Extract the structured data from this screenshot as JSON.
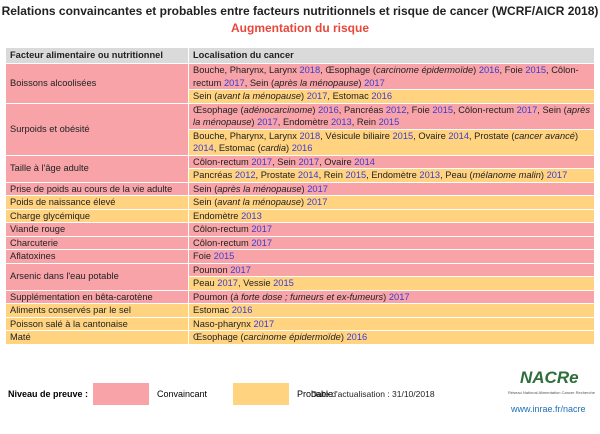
{
  "header": {
    "title": "Relations convaincantes et probables  entre facteurs nutritionnels  et risque de cancer (WCRF/AICR 2018)",
    "subtitle": "Augmentation  du risque"
  },
  "table": {
    "columns": [
      "Facteur alimentaire ou nutritionnel",
      "Localisation du cancer"
    ],
    "rows": [
      {
        "factor": "Boissons alcoolisées",
        "entries": [
          {
            "level": 0,
            "parts": [
              {
                "text": "Bouche, Pharynx, Larynx "
              },
              {
                "year": "2018"
              },
              {
                "text": ", Œsophage ("
              },
              {
                "italic": "carcinome épidermoïde"
              },
              {
                "text": ") "
              },
              {
                "year": "2016"
              },
              {
                "text": ", Foie "
              },
              {
                "year": "2015"
              },
              {
                "text": ", Côlon-rectum  "
              },
              {
                "year": "2017"
              },
              {
                "text": ", Sein ("
              },
              {
                "italic": "après la ménopause"
              },
              {
                "text": ") "
              },
              {
                "year": "2017"
              }
            ]
          },
          {
            "level": 1,
            "parts": [
              {
                "text": "Sein ("
              },
              {
                "italic": "avant la ménopause"
              },
              {
                "text": ") "
              },
              {
                "year": "2017"
              },
              {
                "text": ", Estomac "
              },
              {
                "year": "2016"
              }
            ]
          }
        ]
      },
      {
        "factor": "Surpoids et obésité",
        "entries": [
          {
            "level": 0,
            "parts": [
              {
                "text": "Œsophage ("
              },
              {
                "italic": "adénocarcinome"
              },
              {
                "text": ") "
              },
              {
                "year": "2016"
              },
              {
                "text": ", Pancréas "
              },
              {
                "year": "2012"
              },
              {
                "text": ", Foie "
              },
              {
                "year": "2015"
              },
              {
                "text": ", Côlon-rectum "
              },
              {
                "year": "2017"
              },
              {
                "text": ", Sein ("
              },
              {
                "italic": "après la ménopause"
              },
              {
                "text": ") "
              },
              {
                "year": "2017"
              },
              {
                "text": ", Endomètre  "
              },
              {
                "year": "2013"
              },
              {
                "text": ", Rein "
              },
              {
                "year": "2015"
              }
            ]
          },
          {
            "level": 1,
            "parts": [
              {
                "text": "Bouche, Pharynx, Larynx "
              },
              {
                "year": "2018"
              },
              {
                "text": ", Vésicule biliaire "
              },
              {
                "year": "2015"
              },
              {
                "text": ", Ovaire "
              },
              {
                "year": "2014"
              },
              {
                "text": ", Prostate ("
              },
              {
                "italic": "cancer avancé"
              },
              {
                "text": ") "
              },
              {
                "year": "2014"
              },
              {
                "text": ", Estomac ("
              },
              {
                "italic": "cardia"
              },
              {
                "text": ") "
              },
              {
                "year": "2016"
              }
            ]
          }
        ]
      },
      {
        "factor": "Taille à l'âge adulte",
        "entries": [
          {
            "level": 0,
            "parts": [
              {
                "text": "Côlon-rectum  "
              },
              {
                "year": "2017"
              },
              {
                "text": ", Sein "
              },
              {
                "year": "2017"
              },
              {
                "text": ", Ovaire "
              },
              {
                "year": "2014"
              }
            ]
          },
          {
            "level": 1,
            "parts": [
              {
                "text": "Pancréas "
              },
              {
                "year": "2012"
              },
              {
                "text": ", Prostate  "
              },
              {
                "year": "2014"
              },
              {
                "text": ", Rein "
              },
              {
                "year": "2015"
              },
              {
                "text": ", Endomètre  "
              },
              {
                "year": "2013"
              },
              {
                "text": ", Peau ("
              },
              {
                "italic": "mélanome malin"
              },
              {
                "text": ") "
              },
              {
                "year": "2017"
              }
            ]
          }
        ]
      },
      {
        "factor": "Prise de poids au cours de la vie adulte",
        "entries": [
          {
            "level": 0,
            "parts": [
              {
                "text": "Sein ("
              },
              {
                "italic": "après la ménopause"
              },
              {
                "text": ") "
              },
              {
                "year": "2017"
              }
            ]
          }
        ]
      },
      {
        "factor": "Poids de naissance élevé",
        "entries": [
          {
            "level": 1,
            "parts": [
              {
                "text": "Sein ("
              },
              {
                "italic": "avant la ménopause"
              },
              {
                "text": ") "
              },
              {
                "year": "2017"
              }
            ]
          }
        ]
      },
      {
        "factor": "Charge glycémique",
        "entries": [
          {
            "level": 1,
            "parts": [
              {
                "text": "Endomètre  "
              },
              {
                "year": "2013"
              }
            ]
          }
        ]
      },
      {
        "factor": "Viande rouge",
        "entries": [
          {
            "level": 0,
            "parts": [
              {
                "text": "Côlon-rectum  "
              },
              {
                "year": "2017"
              }
            ]
          }
        ]
      },
      {
        "factor": "Charcuterie",
        "entries": [
          {
            "level": 0,
            "parts": [
              {
                "text": "Côlon-rectum  "
              },
              {
                "year": "2017"
              }
            ]
          }
        ]
      },
      {
        "factor": "Aflatoxines",
        "entries": [
          {
            "level": 0,
            "parts": [
              {
                "text": "Foie "
              },
              {
                "year": "2015"
              }
            ]
          }
        ]
      },
      {
        "factor": "Arsenic dans l'eau potable",
        "entries": [
          {
            "level": 0,
            "parts": [
              {
                "text": "Poumon  "
              },
              {
                "year": "2017"
              }
            ]
          },
          {
            "level": 1,
            "parts": [
              {
                "text": "Peau "
              },
              {
                "year": "2017"
              },
              {
                "text": ", Vessie "
              },
              {
                "year": "2015"
              }
            ]
          }
        ]
      },
      {
        "factor": "Supplémentation  en bêta-carotène",
        "entries": [
          {
            "level": 0,
            "parts": [
              {
                "text": "Poumon  ("
              },
              {
                "italic": "à forte dose ; fumeurs et ex-fumeurs"
              },
              {
                "text": ") "
              },
              {
                "year": "2017"
              }
            ]
          }
        ]
      },
      {
        "factor": "Aliments conservés par le sel",
        "entries": [
          {
            "level": 1,
            "parts": [
              {
                "text": "Estomac "
              },
              {
                "year": "2016"
              }
            ]
          }
        ]
      },
      {
        "factor": "Poisson salé à la cantonaise",
        "entries": [
          {
            "level": 1,
            "parts": [
              {
                "text": "Naso-pharynx  "
              },
              {
                "year": "2017"
              }
            ]
          }
        ]
      },
      {
        "factor": "Maté",
        "entries": [
          {
            "level": 1,
            "parts": [
              {
                "text": "Œsophage ("
              },
              {
                "italic": "carcinome épidermoïde"
              },
              {
                "text": ") "
              },
              {
                "year": "2016"
              }
            ]
          }
        ]
      }
    ]
  },
  "legend": {
    "title": "Niveau de preuve :",
    "items": [
      {
        "label": "Convaincant",
        "color": "#f7a3a8"
      },
      {
        "label": "Probable",
        "color": "#ffd37f"
      }
    ]
  },
  "footer": {
    "date": "Date d'actualisation : 31/10/2018",
    "logo": "NACRe",
    "tagline": "Réseau National Alimentation Cancer Recherche",
    "url": "www.inrae.fr/nacre"
  }
}
